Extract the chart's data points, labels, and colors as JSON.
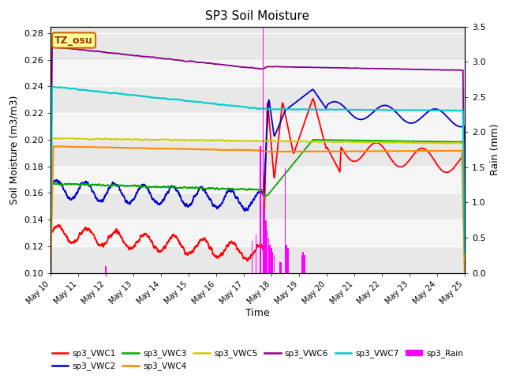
{
  "title": "SP3 Soil Moisture",
  "xlabel": "Time",
  "ylabel_left": "Soil Moisture (m3/m3)",
  "ylabel_right": "Rain (mm)",
  "ylim_left": [
    0.1,
    0.285
  ],
  "ylim_right": [
    0.0,
    3.5
  ],
  "yticks_left": [
    0.1,
    0.12,
    0.14,
    0.16,
    0.18,
    0.2,
    0.22,
    0.24,
    0.26,
    0.28
  ],
  "yticks_right": [
    0.0,
    0.5,
    1.0,
    1.5,
    2.0,
    2.5,
    3.0,
    3.5
  ],
  "x_ticks_labels": [
    "May 10",
    "May 11",
    "May 12",
    "May 13",
    "May 14",
    "May 15",
    "May 16",
    "May 17",
    "May 18",
    "May 19",
    "May 20",
    "May 21",
    "May 22",
    "May 23",
    "May 24",
    "May 25"
  ],
  "annotation_text": "TZ_osu",
  "annotation_color": "#993300",
  "annotation_bg": "#ffff99",
  "annotation_border": "#cc6600",
  "bg_bands": [
    "#e8e8e8",
    "#f5f5f5"
  ],
  "colors": {
    "VWC1": "#ff0000",
    "VWC2": "#0000cc",
    "VWC3": "#00aa00",
    "VWC4": "#ff8800",
    "VWC5": "#cccc00",
    "VWC6": "#880088",
    "VWC7": "#00cccc",
    "Rain": "#ff00ff"
  },
  "legend_order": [
    "VWC1",
    "VWC2",
    "VWC3",
    "VWC4",
    "VWC5",
    "VWC6",
    "VWC7",
    "Rain"
  ],
  "legend_labels": [
    "sp3_VWC1",
    "sp3_VWC2",
    "sp3_VWC3",
    "sp3_VWC4",
    "sp3_VWC5",
    "sp3_VWC6",
    "sp3_VWC7",
    "sp3_Rain"
  ]
}
